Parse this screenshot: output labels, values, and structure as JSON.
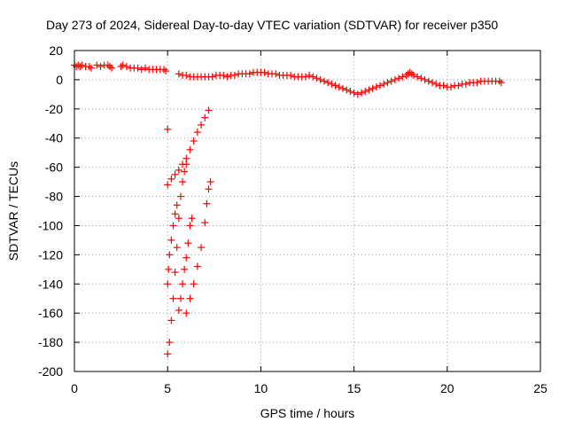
{
  "chart_data": {
    "type": "scatter",
    "title": "Day 273 of 2024, Sidereal Day-to-day VTEC variation (SDTVAR) for receiver p350",
    "xlabel": "GPS time / hours",
    "ylabel": "SDTVAR / TECUs",
    "xlim": [
      0,
      25
    ],
    "ylim": [
      -200,
      20
    ],
    "xticks": [
      0,
      5,
      10,
      15,
      20,
      25
    ],
    "yticks": [
      20,
      0,
      -20,
      -40,
      -60,
      -80,
      -100,
      -120,
      -140,
      -160,
      -180,
      -200
    ],
    "grid": true,
    "marker": "+",
    "color": "#ff0000",
    "series": [
      {
        "name": "SDTVAR",
        "points": [
          [
            0.0,
            10
          ],
          [
            0.1,
            9
          ],
          [
            0.2,
            10
          ],
          [
            0.3,
            9
          ],
          [
            0.4,
            10
          ],
          [
            0.6,
            9
          ],
          [
            0.8,
            9
          ],
          [
            0.9,
            8
          ],
          [
            1.2,
            10
          ],
          [
            1.4,
            9
          ],
          [
            1.6,
            10
          ],
          [
            1.8,
            10
          ],
          [
            1.9,
            9
          ],
          [
            2.0,
            8
          ],
          [
            2.5,
            9
          ],
          [
            2.6,
            10
          ],
          [
            2.8,
            9
          ],
          [
            3.0,
            8
          ],
          [
            3.2,
            8
          ],
          [
            3.4,
            8
          ],
          [
            3.6,
            7
          ],
          [
            3.8,
            8
          ],
          [
            4.0,
            7
          ],
          [
            4.2,
            7
          ],
          [
            4.4,
            7
          ],
          [
            4.6,
            7
          ],
          [
            4.8,
            7
          ],
          [
            4.9,
            6
          ],
          [
            5.6,
            4
          ],
          [
            5.8,
            3
          ],
          [
            6.0,
            3
          ],
          [
            6.2,
            2
          ],
          [
            6.4,
            2
          ],
          [
            6.6,
            2
          ],
          [
            6.8,
            2
          ],
          [
            7.0,
            2
          ],
          [
            7.2,
            2
          ],
          [
            7.4,
            2
          ],
          [
            7.6,
            3
          ],
          [
            7.8,
            3
          ],
          [
            8.0,
            3
          ],
          [
            8.2,
            2
          ],
          [
            8.4,
            3
          ],
          [
            8.6,
            3
          ],
          [
            8.8,
            4
          ],
          [
            9.0,
            4
          ],
          [
            9.2,
            4
          ],
          [
            9.4,
            4
          ],
          [
            9.6,
            5
          ],
          [
            9.8,
            5
          ],
          [
            10.0,
            5
          ],
          [
            10.2,
            5
          ],
          [
            10.4,
            4
          ],
          [
            10.6,
            4
          ],
          [
            10.8,
            4
          ],
          [
            11.0,
            3
          ],
          [
            11.2,
            3
          ],
          [
            11.4,
            3
          ],
          [
            11.6,
            3
          ],
          [
            11.8,
            2
          ],
          [
            12.0,
            2
          ],
          [
            12.2,
            2
          ],
          [
            12.4,
            2
          ],
          [
            12.6,
            3
          ],
          [
            12.8,
            2
          ],
          [
            13.0,
            1
          ],
          [
            13.2,
            0
          ],
          [
            13.4,
            -1
          ],
          [
            13.6,
            -2
          ],
          [
            13.8,
            -3
          ],
          [
            14.0,
            -4
          ],
          [
            14.2,
            -5
          ],
          [
            14.4,
            -6
          ],
          [
            14.6,
            -7
          ],
          [
            14.8,
            -8
          ],
          [
            15.0,
            -9
          ],
          [
            15.2,
            -10
          ],
          [
            15.4,
            -9
          ],
          [
            15.6,
            -8
          ],
          [
            15.8,
            -7
          ],
          [
            16.0,
            -6
          ],
          [
            16.2,
            -5
          ],
          [
            16.4,
            -4
          ],
          [
            16.6,
            -3
          ],
          [
            16.8,
            -2
          ],
          [
            17.0,
            -1
          ],
          [
            17.2,
            0
          ],
          [
            17.4,
            1
          ],
          [
            17.6,
            2
          ],
          [
            17.8,
            3
          ],
          [
            17.9,
            4
          ],
          [
            18.0,
            5
          ],
          [
            18.1,
            4
          ],
          [
            18.2,
            3
          ],
          [
            18.4,
            2
          ],
          [
            18.6,
            1
          ],
          [
            18.8,
            0
          ],
          [
            19.0,
            -1
          ],
          [
            19.2,
            -2
          ],
          [
            19.4,
            -3
          ],
          [
            19.6,
            -4
          ],
          [
            19.8,
            -4
          ],
          [
            20.0,
            -5
          ],
          [
            20.2,
            -5
          ],
          [
            20.4,
            -4
          ],
          [
            20.6,
            -4
          ],
          [
            20.8,
            -3
          ],
          [
            21.0,
            -3
          ],
          [
            21.2,
            -2
          ],
          [
            21.4,
            -2
          ],
          [
            21.6,
            -2
          ],
          [
            21.8,
            -1
          ],
          [
            22.0,
            -1
          ],
          [
            22.2,
            -1
          ],
          [
            22.4,
            -1
          ],
          [
            22.6,
            -1
          ],
          [
            22.8,
            -1
          ],
          [
            22.9,
            -2
          ],
          [
            5.0,
            -34
          ],
          [
            5.0,
            -72
          ],
          [
            5.2,
            -68
          ],
          [
            5.4,
            -65
          ],
          [
            5.6,
            -62
          ],
          [
            5.8,
            -58
          ],
          [
            6.0,
            -54
          ],
          [
            6.2,
            -48
          ],
          [
            6.4,
            -42
          ],
          [
            6.6,
            -36
          ],
          [
            6.8,
            -31
          ],
          [
            7.0,
            -26
          ],
          [
            7.2,
            -21
          ],
          [
            5.0,
            -188
          ],
          [
            5.1,
            -180
          ],
          [
            5.2,
            -165
          ],
          [
            5.3,
            -150
          ],
          [
            5.4,
            -132
          ],
          [
            5.5,
            -115
          ],
          [
            5.6,
            -95
          ],
          [
            5.7,
            -80
          ],
          [
            5.8,
            -70
          ],
          [
            5.9,
            -63
          ],
          [
            6.0,
            -58
          ],
          [
            5.0,
            -140
          ],
          [
            5.05,
            -130
          ],
          [
            5.1,
            -120
          ],
          [
            5.2,
            -110
          ],
          [
            5.3,
            -100
          ],
          [
            5.4,
            -92
          ],
          [
            5.5,
            -86
          ],
          [
            5.6,
            -158
          ],
          [
            5.7,
            -150
          ],
          [
            5.8,
            -140
          ],
          [
            5.9,
            -130
          ],
          [
            6.0,
            -122
          ],
          [
            6.1,
            -112
          ],
          [
            6.2,
            -100
          ],
          [
            6.3,
            -95
          ],
          [
            6.0,
            -160
          ],
          [
            6.2,
            -150
          ],
          [
            6.4,
            -140
          ],
          [
            6.6,
            -128
          ],
          [
            6.8,
            -115
          ],
          [
            7.0,
            -98
          ],
          [
            7.1,
            -85
          ],
          [
            7.2,
            -75
          ],
          [
            7.3,
            -70
          ]
        ]
      }
    ]
  }
}
